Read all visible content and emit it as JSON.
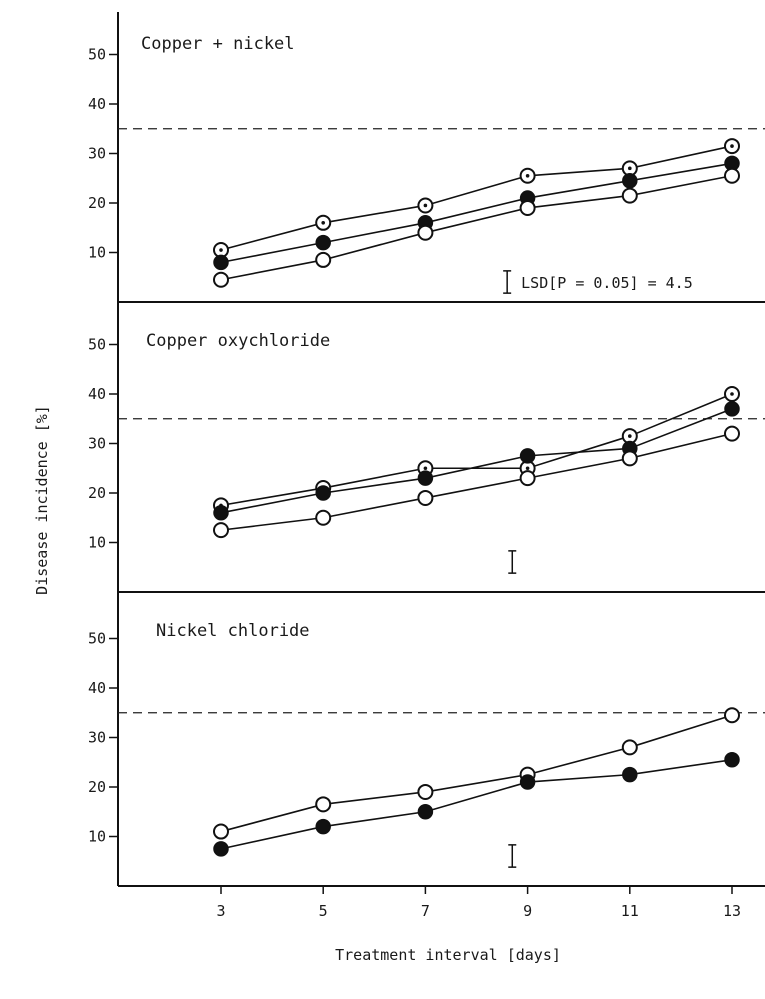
{
  "chart_data": {
    "type": "line",
    "xlabel": "Treatment interval [days]",
    "ylabel": "Disease incidence [%]",
    "x": [
      3,
      5,
      7,
      9,
      11,
      13
    ],
    "x_ticks": [
      "3",
      "5",
      "7",
      "9",
      "11",
      "13"
    ],
    "y_ticks": [
      "10",
      "20",
      "30",
      "40",
      "50"
    ],
    "ylim": [
      0,
      60
    ],
    "grid": false,
    "reference_line": {
      "y": 35,
      "style": "dashed"
    },
    "lsd_label": "LSD[P = 0.05] = 4.5",
    "lsd_value": 4.5,
    "panels": [
      {
        "title": "Copper + nickel",
        "lsd_x": 8.6,
        "series": [
          {
            "marker": "dotted-circle",
            "values": [
              10.5,
              16,
              19.5,
              25.5,
              27,
              31.5
            ]
          },
          {
            "marker": "filled-circle",
            "values": [
              8,
              12,
              16,
              21,
              24.5,
              28
            ]
          },
          {
            "marker": "open-circle",
            "values": [
              4.5,
              8.5,
              14,
              19,
              21.5,
              25.5
            ]
          }
        ]
      },
      {
        "title": "Copper oxychloride",
        "lsd_x": 8.7,
        "series": [
          {
            "marker": "dotted-circle",
            "values": [
              17.5,
              21,
              25,
              25,
              31.5,
              40
            ]
          },
          {
            "marker": "filled-circle",
            "values": [
              16,
              20,
              23,
              27.5,
              29,
              37
            ]
          },
          {
            "marker": "open-circle",
            "values": [
              12.5,
              15,
              19,
              23,
              27,
              32
            ]
          }
        ]
      },
      {
        "title": "Nickel chloride",
        "lsd_x": 8.7,
        "series": [
          {
            "marker": "open-circle",
            "values": [
              11,
              16.5,
              19,
              22.5,
              28,
              34.5
            ]
          },
          {
            "marker": "filled-circle",
            "values": [
              7.5,
              12,
              15,
              21,
              22.5,
              25.5
            ]
          }
        ]
      }
    ]
  }
}
